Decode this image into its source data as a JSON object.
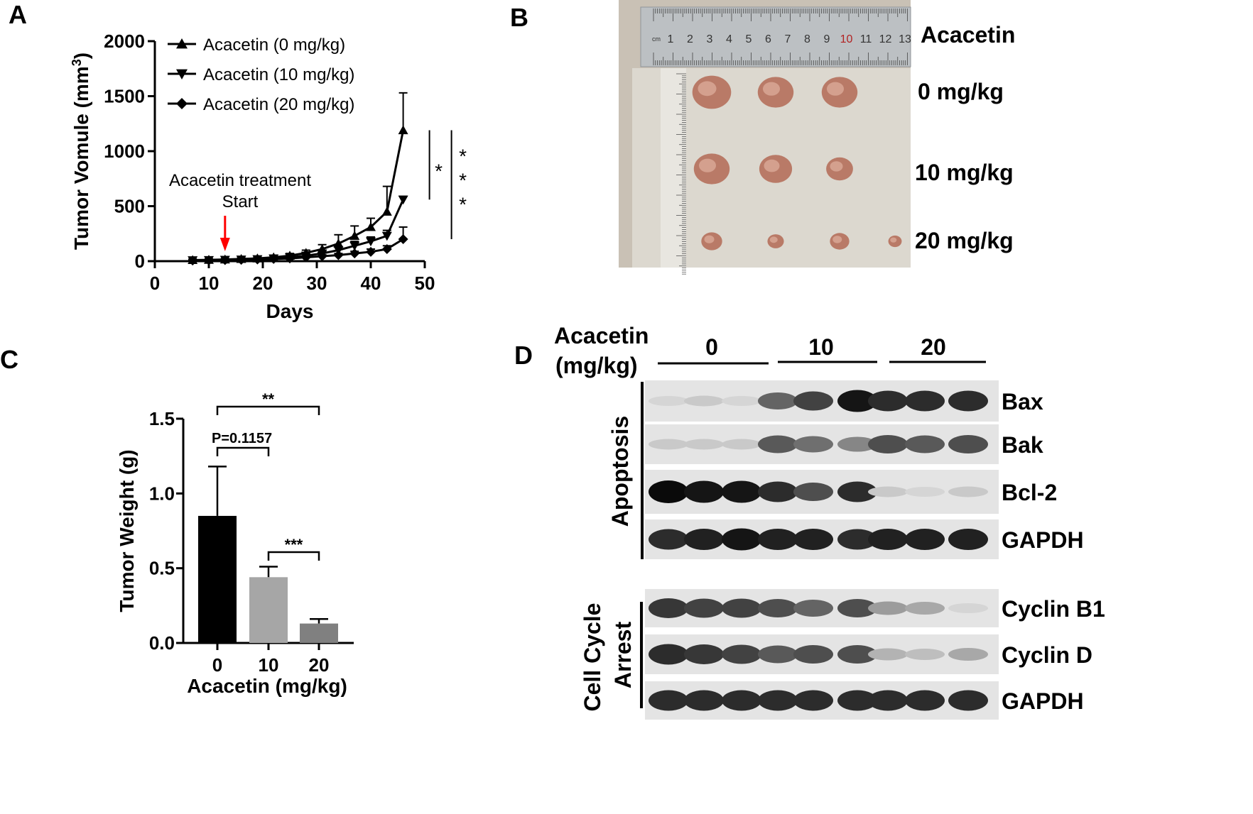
{
  "panels": {
    "a": "A",
    "b": "B",
    "c": "C",
    "d": "D"
  },
  "chart_data": [
    {
      "type": "line",
      "panel": "A",
      "xlabel": "Days",
      "ylabel": "Tumor Vomule (mm",
      "ylabel_sup": "3",
      "ylabel_close": ")",
      "xlim": [
        0,
        50
      ],
      "ylim": [
        0,
        2000
      ],
      "xticks": [
        0,
        10,
        20,
        30,
        40,
        50
      ],
      "yticks": [
        0,
        500,
        1000,
        1500,
        2000
      ],
      "x": [
        7,
        10,
        13,
        16,
        19,
        22,
        25,
        28,
        31,
        34,
        37,
        40,
        43,
        46
      ],
      "series": [
        {
          "name": "Acacetin (0 mg/kg)",
          "marker": "triangle-up",
          "values": [
            10,
            12,
            15,
            20,
            25,
            35,
            50,
            75,
            110,
            160,
            230,
            310,
            450,
            1190
          ],
          "errors": [
            8,
            8,
            8,
            10,
            10,
            15,
            20,
            25,
            40,
            80,
            90,
            80,
            230,
            340
          ]
        },
        {
          "name": "Acacetin (10 mg/kg)",
          "marker": "triangle-down",
          "values": [
            8,
            10,
            12,
            15,
            18,
            25,
            35,
            50,
            70,
            100,
            140,
            180,
            230,
            560
          ],
          "errors": [
            6,
            6,
            6,
            8,
            8,
            10,
            12,
            15,
            20,
            30,
            40,
            40,
            50,
            30
          ]
        },
        {
          "name": "Acacetin (20 mg/kg)",
          "marker": "diamond",
          "values": [
            6,
            8,
            10,
            12,
            15,
            20,
            25,
            35,
            45,
            55,
            70,
            85,
            110,
            200
          ],
          "errors": [
            5,
            5,
            5,
            6,
            6,
            8,
            10,
            10,
            12,
            15,
            20,
            25,
            30,
            110
          ]
        }
      ],
      "annotation": {
        "line1": "Acacetin treatment",
        "line2": "Start",
        "x": 13
      },
      "significance": [
        {
          "label": "*",
          "between": [
            "Acacetin (0 mg/kg)",
            "Acacetin (10 mg/kg)"
          ]
        },
        {
          "label": "***",
          "between": [
            "Acacetin (0 mg/kg)",
            "Acacetin (20 mg/kg)"
          ]
        }
      ],
      "legend_position": "top-left",
      "colors": {
        "line": "#000000",
        "arrow": "#ff0000"
      }
    },
    {
      "type": "bar",
      "panel": "C",
      "categories": [
        "0",
        "10",
        "20"
      ],
      "values": [
        0.85,
        0.44,
        0.13
      ],
      "errors": [
        0.33,
        0.07,
        0.03
      ],
      "colors": [
        "#000000",
        "#a6a6a6",
        "#808080"
      ],
      "xlabel": "Acacetin (mg/kg)",
      "ylabel": "Tumor Weight (g)",
      "ylim": [
        0,
        1.5
      ],
      "yticks": [
        "0.0",
        "0.5",
        "1.0",
        "1.5"
      ],
      "brackets": [
        {
          "from": 0,
          "to": 2,
          "label": "**"
        },
        {
          "from": 0,
          "to": 1,
          "label": "P=0.1157"
        },
        {
          "from": 1,
          "to": 2,
          "label": "***"
        }
      ]
    }
  ],
  "photo": {
    "title": "Acacetin",
    "groups": [
      "0 mg/kg",
      "10 mg/kg",
      "20 mg/kg"
    ],
    "ruler_unit": "cm",
    "ruler_ticks": [
      "1",
      "2",
      "3",
      "4",
      "5",
      "6",
      "7",
      "8",
      "9",
      "10",
      "11",
      "12",
      "13"
    ],
    "tumor_counts": [
      3,
      3,
      4
    ]
  },
  "blot": {
    "header_line1": "Acacetin",
    "header_line2": "(mg/kg)",
    "doses": [
      "0",
      "10",
      "20"
    ],
    "group1_label": "Apoptosis",
    "group2_line1": "Cell Cycle",
    "group2_line2": "Arrest",
    "bands": [
      {
        "label": "Bax",
        "intensity": [
          0.1,
          0.15,
          0.1,
          0.6,
          0.75,
          0.95,
          0.85,
          0.85,
          0.85
        ]
      },
      {
        "label": "Bak",
        "intensity": [
          0.15,
          0.15,
          0.15,
          0.65,
          0.55,
          0.45,
          0.7,
          0.65,
          0.7
        ]
      },
      {
        "label": "Bcl-2",
        "intensity": [
          1.0,
          0.95,
          0.95,
          0.85,
          0.7,
          0.85,
          0.15,
          0.1,
          0.15
        ]
      },
      {
        "label": "GAPDH",
        "intensity": [
          0.85,
          0.9,
          0.95,
          0.9,
          0.9,
          0.85,
          0.9,
          0.9,
          0.9
        ]
      },
      {
        "label": "Cyclin B1",
        "intensity": [
          0.8,
          0.75,
          0.75,
          0.7,
          0.6,
          0.7,
          0.35,
          0.3,
          0.1
        ]
      },
      {
        "label": "Cyclin D",
        "intensity": [
          0.85,
          0.8,
          0.75,
          0.65,
          0.7,
          0.7,
          0.25,
          0.2,
          0.3
        ]
      },
      {
        "label": "GAPDH",
        "intensity": [
          0.85,
          0.85,
          0.85,
          0.85,
          0.85,
          0.85,
          0.85,
          0.85,
          0.85
        ]
      }
    ]
  }
}
